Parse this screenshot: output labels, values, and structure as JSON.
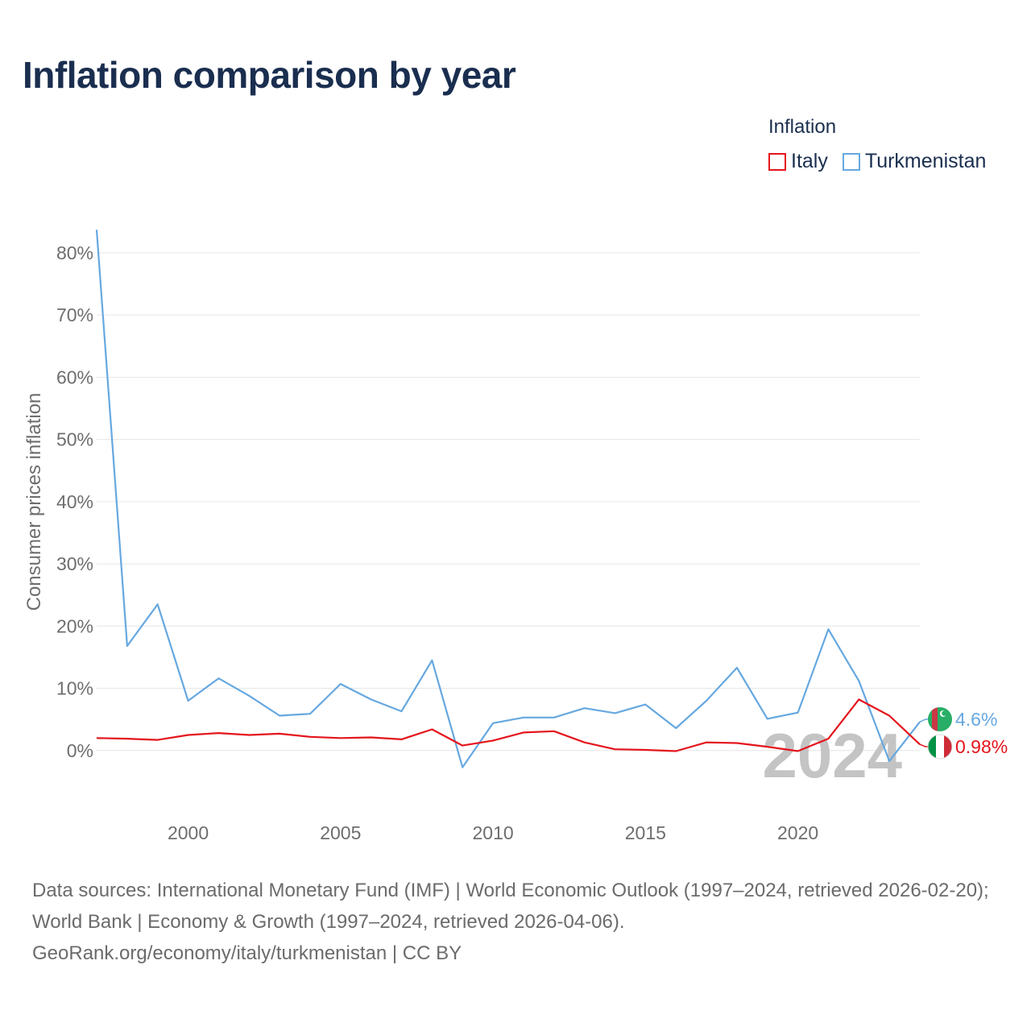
{
  "title": "Inflation comparison by year",
  "legend": {
    "title": "Inflation",
    "items": [
      {
        "label": "Italy",
        "color": "#e4151c"
      },
      {
        "label": "Turkmenistan",
        "color": "#66a8e0"
      }
    ]
  },
  "footer": {
    "sources": "Data sources: International Monetary Fund (IMF) | World Economic Outlook (1997–2024, retrieved 2026-02-20); World Bank | Economy & Growth (1997–2024, retrieved 2026-04-06).",
    "credit": "GeoRank.org/economy/italy/turkmenistan | CC BY"
  },
  "chart_data": {
    "type": "line",
    "title": "Inflation comparison by year",
    "xlabel": "",
    "ylabel": "Consumer prices inflation",
    "x": [
      1997,
      1998,
      1999,
      2000,
      2001,
      2002,
      2003,
      2004,
      2005,
      2006,
      2007,
      2008,
      2009,
      2010,
      2011,
      2012,
      2013,
      2014,
      2015,
      2016,
      2017,
      2018,
      2019,
      2020,
      2021,
      2022,
      2023,
      2024
    ],
    "xlim": [
      1997,
      2024
    ],
    "ylim": [
      -10,
      84
    ],
    "x_ticks": [
      2000,
      2005,
      2010,
      2015,
      2020
    ],
    "x_tick_labels": [
      "2000",
      "2005",
      "2010",
      "2015",
      "2020"
    ],
    "y_ticks": [
      0,
      10,
      20,
      30,
      40,
      50,
      60,
      70,
      80
    ],
    "y_tick_labels": [
      "0%",
      "10%",
      "20%",
      "30%",
      "40%",
      "50%",
      "60%",
      "70%",
      "80%"
    ],
    "grid": true,
    "watermark_year": "2024",
    "series": [
      {
        "name": "Italy",
        "color": "#e4151c",
        "values": [
          2.0,
          1.9,
          1.7,
          2.5,
          2.8,
          2.5,
          2.7,
          2.2,
          2.0,
          2.1,
          1.8,
          3.4,
          0.8,
          1.6,
          2.9,
          3.1,
          1.3,
          0.2,
          0.1,
          -0.1,
          1.3,
          1.2,
          0.6,
          -0.1,
          1.9,
          8.2,
          5.6,
          0.98
        ],
        "end_label": "0.98%",
        "flag": "italy-flag-icon"
      },
      {
        "name": "Turkmenistan",
        "color": "#66a8e0",
        "values": [
          83.7,
          16.8,
          23.5,
          8.0,
          11.6,
          8.8,
          5.6,
          5.9,
          10.7,
          8.2,
          6.3,
          14.5,
          -2.7,
          4.4,
          5.3,
          5.3,
          6.8,
          6.0,
          7.4,
          3.6,
          8.0,
          13.3,
          5.1,
          6.1,
          19.5,
          11.2,
          -1.7,
          4.6
        ],
        "end_label": "4.6%",
        "flag": "turkmenistan-flag-icon"
      }
    ]
  }
}
